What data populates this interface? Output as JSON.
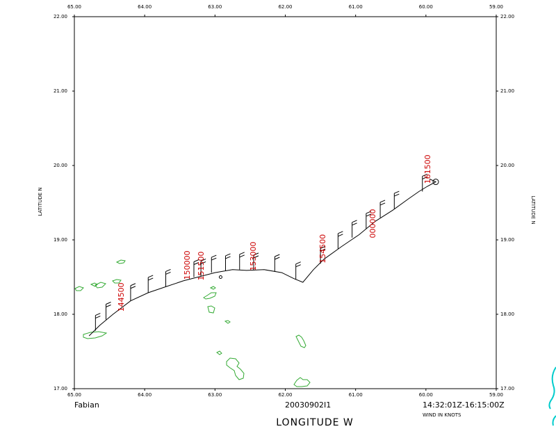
{
  "storm_name": "Fabian",
  "date_label": "20030902I1",
  "time_range": "14:32:01Z-16:15:00Z",
  "wind_units": "WIND IN KNOTS",
  "x_axis_title": "LONGITUDE  W",
  "y_axis_title": "LATITUDE  N",
  "colors": {
    "track": "#000000",
    "coast": "#33aa33",
    "labels": "#cc0000",
    "corner": "#00cccc"
  },
  "chart_data": {
    "type": "line",
    "title": "",
    "xlabel": "LONGITUDE  W",
    "ylabel": "LATITUDE  N",
    "xlim": [
      65.0,
      59.0
    ],
    "ylim": [
      17.0,
      22.0
    ],
    "x_ticks": [
      "65.00",
      "64.00",
      "63.00",
      "62.00",
      "61.00",
      "60.00",
      "59.00"
    ],
    "y_ticks": [
      "17.00",
      "18.00",
      "19.00",
      "20.00",
      "21.00",
      "22.00"
    ],
    "grid": false,
    "flight_track": {
      "lon": [
        64.79,
        64.64,
        64.45,
        64.2,
        63.95,
        63.7,
        63.45,
        63.2,
        63.0,
        62.75,
        62.55,
        62.3,
        62.05,
        61.88,
        61.75,
        61.6,
        61.45,
        61.2,
        60.95,
        60.72,
        60.47,
        60.25,
        60.1,
        59.98,
        59.86,
        59.95
      ],
      "lat": [
        17.71,
        17.85,
        18.0,
        18.18,
        18.29,
        18.37,
        18.45,
        18.51,
        18.56,
        18.6,
        18.59,
        18.6,
        18.56,
        18.48,
        18.43,
        18.6,
        18.74,
        18.91,
        19.07,
        19.25,
        19.4,
        19.55,
        19.65,
        19.72,
        19.78,
        19.82
      ]
    },
    "time_labels": [
      {
        "text": "144500",
        "lon": 64.3,
        "lat": 18.23
      },
      {
        "text": "150000",
        "lon": 63.36,
        "lat": 18.66
      },
      {
        "text": "151500",
        "lon": 63.16,
        "lat": 18.65
      },
      {
        "text": "153000",
        "lon": 62.42,
        "lat": 18.78
      },
      {
        "text": "154500",
        "lon": 61.43,
        "lat": 18.88
      },
      {
        "text": "000000",
        "lon": 60.72,
        "lat": 19.22
      },
      {
        "text": "161500",
        "lon": 59.94,
        "lat": 19.95
      }
    ]
  }
}
